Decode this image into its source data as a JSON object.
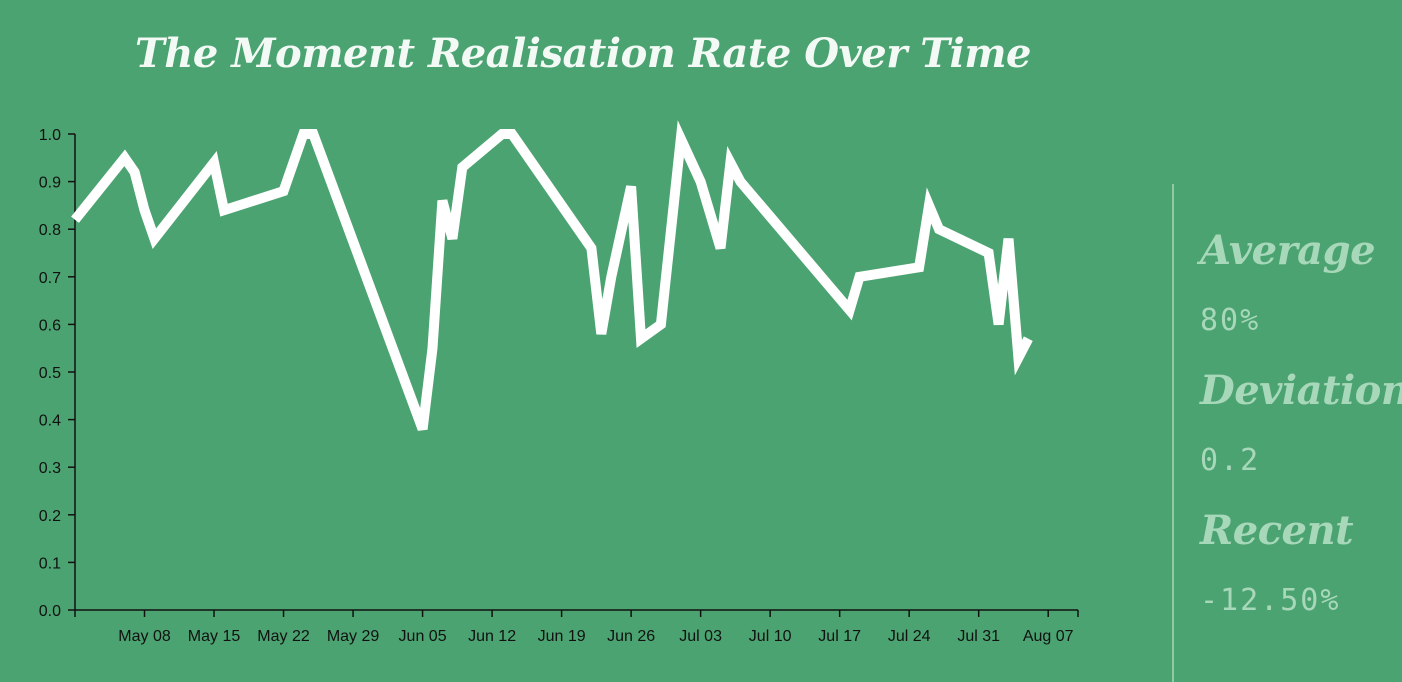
{
  "chart_data": {
    "type": "line",
    "title": "The Moment Realisation Rate Over Time",
    "xlabel": "",
    "ylabel": "",
    "ylim": [
      0,
      1
    ],
    "xlim": [
      "2023-05-01",
      "2023-08-10"
    ],
    "grid": false,
    "x_ticks": [
      {
        "date": "2023-05-08",
        "label": "May 08"
      },
      {
        "date": "2023-05-15",
        "label": "May 15"
      },
      {
        "date": "2023-05-22",
        "label": "May 22"
      },
      {
        "date": "2023-05-29",
        "label": "May 29"
      },
      {
        "date": "2023-06-05",
        "label": "Jun 05"
      },
      {
        "date": "2023-06-12",
        "label": "Jun 12"
      },
      {
        "date": "2023-06-19",
        "label": "Jun 19"
      },
      {
        "date": "2023-06-26",
        "label": "Jun 26"
      },
      {
        "date": "2023-07-03",
        "label": "Jul 03"
      },
      {
        "date": "2023-07-10",
        "label": "Jul 10"
      },
      {
        "date": "2023-07-17",
        "label": "Jul 17"
      },
      {
        "date": "2023-07-24",
        "label": "Jul 24"
      },
      {
        "date": "2023-07-31",
        "label": "Jul 31"
      },
      {
        "date": "2023-08-07",
        "label": "Aug 07"
      }
    ],
    "y_ticks": [
      "0.0",
      "0.1",
      "0.2",
      "0.3",
      "0.4",
      "0.5",
      "0.6",
      "0.7",
      "0.8",
      "0.9",
      "1.0"
    ],
    "series": [
      {
        "color": "#ffffff",
        "points": [
          [
            "2023-05-01",
            0.82
          ],
          [
            "2023-05-06",
            0.95
          ],
          [
            "2023-05-07",
            0.92
          ],
          [
            "2023-05-08",
            0.84
          ],
          [
            "2023-05-09",
            0.78
          ],
          [
            "2023-05-15",
            0.94
          ],
          [
            "2023-05-16",
            0.84
          ],
          [
            "2023-05-22",
            0.88
          ],
          [
            "2023-05-24",
            1.0
          ],
          [
            "2023-05-25",
            1.0
          ],
          [
            "2023-06-05",
            0.38
          ],
          [
            "2023-06-06",
            0.55
          ],
          [
            "2023-06-07",
            0.86
          ],
          [
            "2023-06-08",
            0.78
          ],
          [
            "2023-06-09",
            0.93
          ],
          [
            "2023-06-13",
            1.0
          ],
          [
            "2023-06-14",
            1.0
          ],
          [
            "2023-06-22",
            0.76
          ],
          [
            "2023-06-23",
            0.58
          ],
          [
            "2023-06-24",
            0.7
          ],
          [
            "2023-06-26",
            0.89
          ],
          [
            "2023-06-27",
            0.57
          ],
          [
            "2023-06-29",
            0.6
          ],
          [
            "2023-07-01",
            0.99
          ],
          [
            "2023-07-03",
            0.9
          ],
          [
            "2023-07-05",
            0.76
          ],
          [
            "2023-07-06",
            0.94
          ],
          [
            "2023-07-07",
            0.9
          ],
          [
            "2023-07-18",
            0.63
          ],
          [
            "2023-07-19",
            0.7
          ],
          [
            "2023-07-25",
            0.72
          ],
          [
            "2023-07-26",
            0.85
          ],
          [
            "2023-07-27",
            0.8
          ],
          [
            "2023-08-01",
            0.75
          ],
          [
            "2023-08-02",
            0.6
          ],
          [
            "2023-08-03",
            0.78
          ],
          [
            "2023-08-04",
            0.53
          ],
          [
            "2023-08-05",
            0.57
          ]
        ]
      }
    ]
  },
  "stats": {
    "average_label": "Average",
    "average_value": "80%",
    "deviation_label": "Deviation",
    "deviation_value": "0.2",
    "recent_label": "Recent",
    "recent_value": "-12.50%"
  }
}
